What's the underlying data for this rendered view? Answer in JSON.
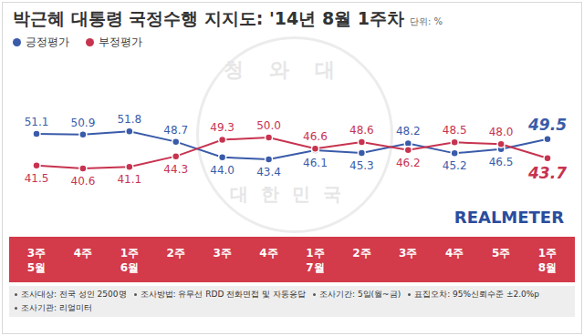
{
  "chart_data": {
    "type": "line",
    "title": "박근혜 대통령 국정수행 지지도: '14년 8월 1주차",
    "subtitle": "단위: %",
    "categories": [
      "3주\n5월",
      "4주",
      "1주\n6월",
      "2주",
      "3주",
      "4주",
      "1주\n7월",
      "2주",
      "3주",
      "4주",
      "5주",
      "1주\n8월"
    ],
    "series": [
      {
        "name": "긍정평가",
        "color": "#3a5ba9",
        "marker": "circle",
        "values": [
          51.1,
          50.9,
          51.8,
          48.7,
          44.0,
          43.4,
          46.1,
          45.3,
          48.2,
          45.2,
          46.5,
          49.5
        ],
        "value_labels": [
          "51.1",
          "50.9",
          "51.8",
          "48.7",
          "44.0",
          "43.4",
          "46.1",
          "45.3",
          "48.2",
          "45.2",
          "46.5",
          "49.5"
        ]
      },
      {
        "name": "부정평가",
        "color": "#c7334f",
        "marker": "circle",
        "values": [
          41.5,
          40.6,
          41.1,
          44.3,
          49.3,
          50.0,
          46.6,
          48.6,
          46.2,
          48.5,
          48.0,
          43.7
        ],
        "value_labels": [
          "41.5",
          "40.6",
          "41.1",
          "44.3",
          "49.3",
          "50.0",
          "46.6",
          "48.6",
          "46.2",
          "48.5",
          "48.0",
          "43.7"
        ]
      }
    ],
    "ylim": [
      20,
      75
    ],
    "tick_labels": "x",
    "data_labels": true,
    "legend": "upper left",
    "grid": false,
    "logo": "REALMETER",
    "watermark": {
      "top": "청와대",
      "bottom": "대한민국"
    },
    "footer": [
      "조사대상: 전국 성인 2500명",
      "조사방법: 유무선 RDD 전화면접 및 자동응답",
      "조사기간: 5일(월~금)",
      "표집오차: 95%신뢰수준 ±2.0%p",
      "조사기관: 리얼미터"
    ]
  }
}
